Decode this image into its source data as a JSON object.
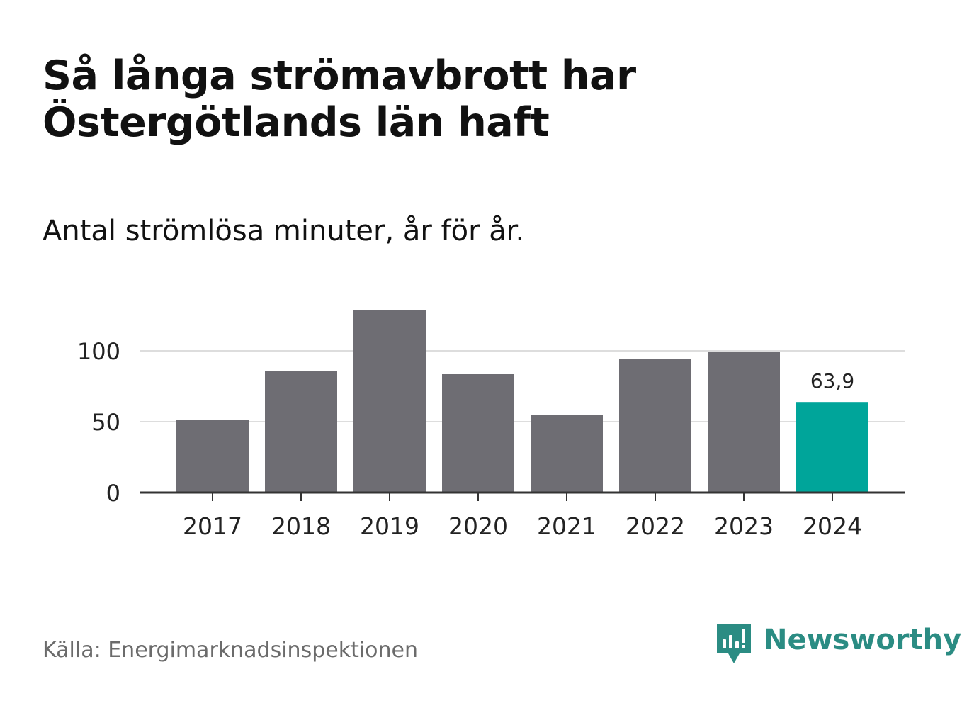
{
  "title": "Så långa strömavbrott har Östergötlands län haft",
  "subtitle": "Antal strömlösa minuter, år för år.",
  "source": "Källa: Energimarknadsinspektionen",
  "brand": {
    "name": "Newsworthy",
    "color": "#2b8c83",
    "icon": "newsworthy-logo-icon"
  },
  "colors": {
    "bar": "#6e6d73",
    "highlight": "#00a59a",
    "grid": "#dddddd",
    "axis": "#333333",
    "text": "#222222"
  },
  "chart_data": {
    "type": "bar",
    "title": "Så långa strömavbrott har Östergötlands län haft",
    "subtitle": "Antal strömlösa minuter, år för år.",
    "xlabel": "",
    "ylabel": "",
    "categories": [
      "2017",
      "2018",
      "2019",
      "2020",
      "2021",
      "2022",
      "2023",
      "2024"
    ],
    "values": [
      51.5,
      85.5,
      129,
      83.5,
      55,
      94,
      99,
      63.9
    ],
    "highlight_index": 7,
    "highlight_label": "63,9",
    "ylim": [
      0,
      130
    ],
    "yticks": [
      0,
      50,
      100
    ],
    "ytick_labels": [
      "0",
      "50",
      "100"
    ],
    "grid": true
  }
}
